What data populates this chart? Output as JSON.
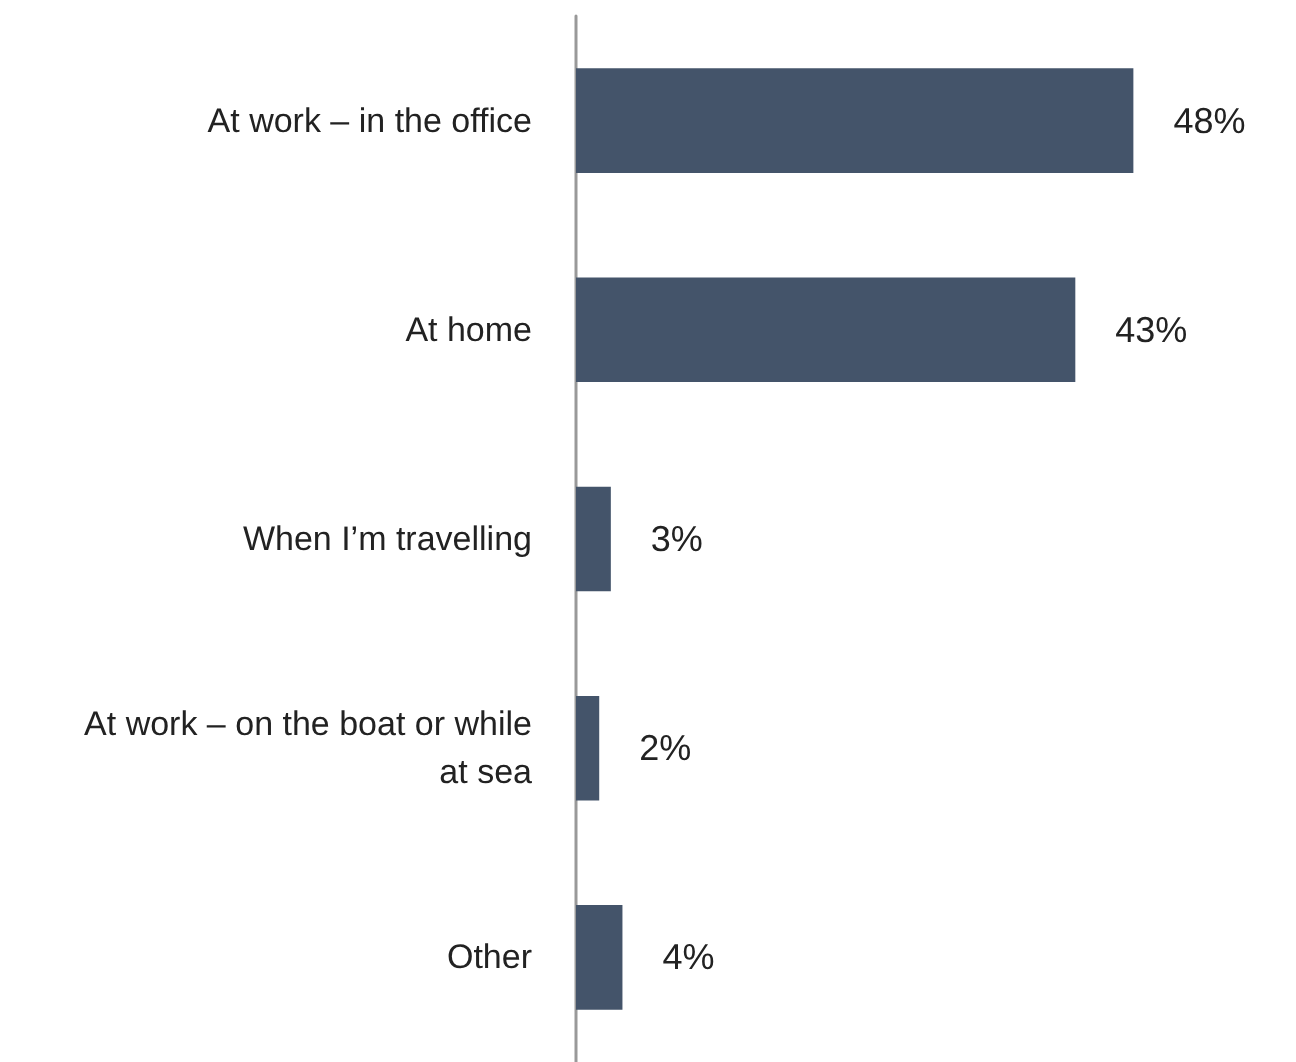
{
  "chart_data": {
    "type": "bar",
    "orientation": "horizontal",
    "categories": [
      "At work – in the office",
      "At home",
      "When I’m travelling",
      "At work – on the boat or while at sea",
      "Other"
    ],
    "values": [
      48,
      43,
      3,
      2,
      4
    ],
    "color": "#44546a",
    "value_labels": [
      "48%",
      "43%",
      "3%",
      "2%",
      "4%"
    ],
    "grid": false
  }
}
